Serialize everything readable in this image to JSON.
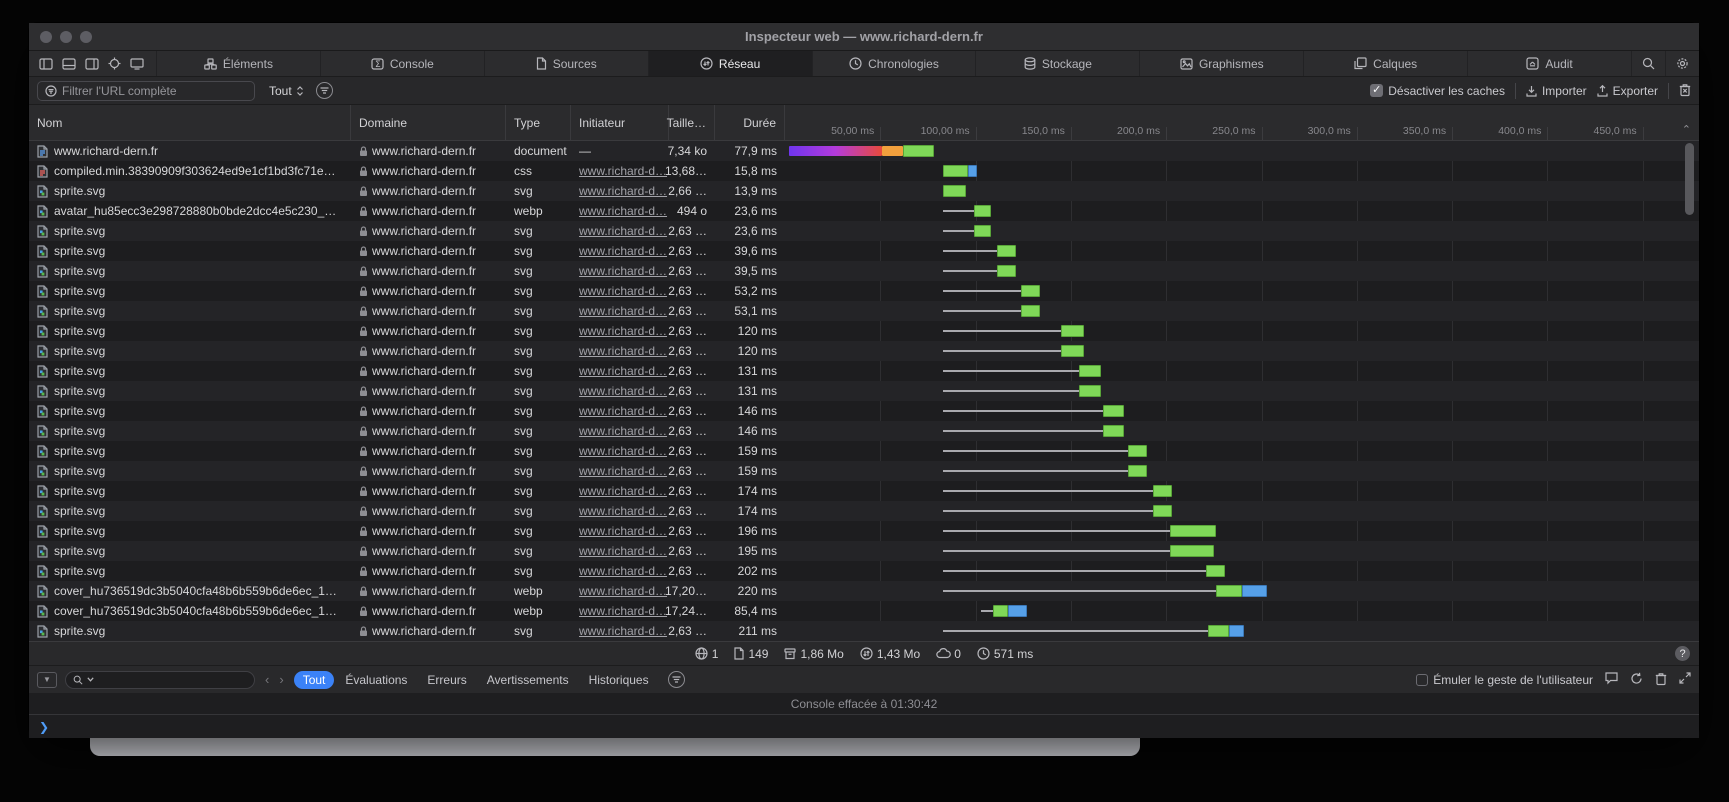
{
  "window": {
    "title": "Inspecteur web — www.richard-dern.fr"
  },
  "toolbar": {
    "tabs": [
      {
        "id": "elements",
        "label": "Éléments"
      },
      {
        "id": "console",
        "label": "Console"
      },
      {
        "id": "sources",
        "label": "Sources"
      },
      {
        "id": "network",
        "label": "Réseau"
      },
      {
        "id": "timelines",
        "label": "Chronologies"
      },
      {
        "id": "storage",
        "label": "Stockage"
      },
      {
        "id": "graphics",
        "label": "Graphismes"
      },
      {
        "id": "layers",
        "label": "Calques"
      },
      {
        "id": "audit",
        "label": "Audit"
      }
    ],
    "active_tab": "network"
  },
  "filterbar": {
    "filter_placeholder": "Filtrer l'URL complète",
    "scope_value": "Tout",
    "disable_caches_label": "Désactiver les caches",
    "disable_caches_checked": true,
    "import_label": "Importer",
    "export_label": "Exporter"
  },
  "table": {
    "columns": {
      "name": "Nom",
      "domain": "Domaine",
      "type": "Type",
      "initiator": "Initiateur",
      "size": "Taille…",
      "duration": "Durée"
    },
    "ruler_ticks": [
      "50,00 ms",
      "100,00 ms",
      "150,0 ms",
      "200,0 ms",
      "250,0 ms",
      "300,0 ms",
      "350,0 ms",
      "400,0 ms",
      "450,0 ms"
    ],
    "rows": [
      {
        "name": "www.richard-dern.fr",
        "icon": "document",
        "domain": "www.richard-dern.fr",
        "type": "document",
        "initiator": "—",
        "size": "7,34 ko",
        "duration": "77,9 ms",
        "wf": [
          [
            "purple",
            2,
            51
          ],
          [
            "orange",
            51,
            62
          ],
          [
            "green",
            62,
            78
          ]
        ]
      },
      {
        "name": "compiled.min.38390909f303624ed9e1cf1bd3fc71e…",
        "icon": "css",
        "domain": "www.richard-dern.fr",
        "type": "css",
        "initiator": "www.richard-d…",
        "size": "13,68…",
        "duration": "15,8 ms",
        "wf": [
          [
            "green",
            83,
            96
          ],
          [
            "blue",
            96,
            101
          ]
        ]
      },
      {
        "name": "sprite.svg",
        "icon": "image",
        "domain": "www.richard-dern.fr",
        "type": "svg",
        "initiator": "www.richard-d…",
        "size": "2,66 …",
        "duration": "13,9 ms",
        "wf": [
          [
            "green",
            83,
            95
          ]
        ]
      },
      {
        "name": "avatar_hu85ecc3e298728880b0bde2dcc4e5c230_…",
        "icon": "image",
        "domain": "www.richard-dern.fr",
        "type": "webp",
        "initiator": "www.richard-d…",
        "size": "494 o",
        "duration": "23,6 ms",
        "wf": [
          [
            "queue",
            83,
            99
          ],
          [
            "green",
            99,
            108
          ]
        ]
      },
      {
        "name": "sprite.svg",
        "icon": "image",
        "domain": "www.richard-dern.fr",
        "type": "svg",
        "initiator": "www.richard-d…",
        "size": "2,63 …",
        "duration": "23,6 ms",
        "wf": [
          [
            "queue",
            83,
            99
          ],
          [
            "green",
            99,
            108
          ]
        ]
      },
      {
        "name": "sprite.svg",
        "icon": "image",
        "domain": "www.richard-dern.fr",
        "type": "svg",
        "initiator": "www.richard-d…",
        "size": "2,63 …",
        "duration": "39,6 ms",
        "wf": [
          [
            "queue",
            83,
            111
          ],
          [
            "green",
            111,
            121
          ]
        ]
      },
      {
        "name": "sprite.svg",
        "icon": "image",
        "domain": "www.richard-dern.fr",
        "type": "svg",
        "initiator": "www.richard-d…",
        "size": "2,63 …",
        "duration": "39,5 ms",
        "wf": [
          [
            "queue",
            83,
            111
          ],
          [
            "green",
            111,
            121
          ]
        ]
      },
      {
        "name": "sprite.svg",
        "icon": "image",
        "domain": "www.richard-dern.fr",
        "type": "svg",
        "initiator": "www.richard-d…",
        "size": "2,63 …",
        "duration": "53,2 ms",
        "wf": [
          [
            "queue",
            83,
            124
          ],
          [
            "green",
            124,
            134
          ]
        ]
      },
      {
        "name": "sprite.svg",
        "icon": "image",
        "domain": "www.richard-dern.fr",
        "type": "svg",
        "initiator": "www.richard-d…",
        "size": "2,63 …",
        "duration": "53,1 ms",
        "wf": [
          [
            "queue",
            83,
            124
          ],
          [
            "green",
            124,
            134
          ]
        ]
      },
      {
        "name": "sprite.svg",
        "icon": "image",
        "domain": "www.richard-dern.fr",
        "type": "svg",
        "initiator": "www.richard-d…",
        "size": "2,63 …",
        "duration": "120 ms",
        "wf": [
          [
            "queue",
            83,
            145
          ],
          [
            "green",
            145,
            157
          ]
        ]
      },
      {
        "name": "sprite.svg",
        "icon": "image",
        "domain": "www.richard-dern.fr",
        "type": "svg",
        "initiator": "www.richard-d…",
        "size": "2,63 …",
        "duration": "120 ms",
        "wf": [
          [
            "queue",
            83,
            145
          ],
          [
            "green",
            145,
            157
          ]
        ]
      },
      {
        "name": "sprite.svg",
        "icon": "image",
        "domain": "www.richard-dern.fr",
        "type": "svg",
        "initiator": "www.richard-d…",
        "size": "2,63 …",
        "duration": "131 ms",
        "wf": [
          [
            "queue",
            83,
            154
          ],
          [
            "green",
            154,
            166
          ]
        ]
      },
      {
        "name": "sprite.svg",
        "icon": "image",
        "domain": "www.richard-dern.fr",
        "type": "svg",
        "initiator": "www.richard-d…",
        "size": "2,63 …",
        "duration": "131 ms",
        "wf": [
          [
            "queue",
            83,
            154
          ],
          [
            "green",
            154,
            166
          ]
        ]
      },
      {
        "name": "sprite.svg",
        "icon": "image",
        "domain": "www.richard-dern.fr",
        "type": "svg",
        "initiator": "www.richard-d…",
        "size": "2,63 …",
        "duration": "146 ms",
        "wf": [
          [
            "queue",
            83,
            167
          ],
          [
            "green",
            167,
            178
          ]
        ]
      },
      {
        "name": "sprite.svg",
        "icon": "image",
        "domain": "www.richard-dern.fr",
        "type": "svg",
        "initiator": "www.richard-d…",
        "size": "2,63 …",
        "duration": "146 ms",
        "wf": [
          [
            "queue",
            83,
            167
          ],
          [
            "green",
            167,
            178
          ]
        ]
      },
      {
        "name": "sprite.svg",
        "icon": "image",
        "domain": "www.richard-dern.fr",
        "type": "svg",
        "initiator": "www.richard-d…",
        "size": "2,63 …",
        "duration": "159 ms",
        "wf": [
          [
            "queue",
            83,
            180
          ],
          [
            "green",
            180,
            190
          ]
        ]
      },
      {
        "name": "sprite.svg",
        "icon": "image",
        "domain": "www.richard-dern.fr",
        "type": "svg",
        "initiator": "www.richard-d…",
        "size": "2,63 …",
        "duration": "159 ms",
        "wf": [
          [
            "queue",
            83,
            180
          ],
          [
            "green",
            180,
            190
          ]
        ]
      },
      {
        "name": "sprite.svg",
        "icon": "image",
        "domain": "www.richard-dern.fr",
        "type": "svg",
        "initiator": "www.richard-d…",
        "size": "2,63 …",
        "duration": "174 ms",
        "wf": [
          [
            "queue",
            83,
            193
          ],
          [
            "green",
            193,
            203
          ]
        ]
      },
      {
        "name": "sprite.svg",
        "icon": "image",
        "domain": "www.richard-dern.fr",
        "type": "svg",
        "initiator": "www.richard-d…",
        "size": "2,63 …",
        "duration": "174 ms",
        "wf": [
          [
            "queue",
            83,
            193
          ],
          [
            "green",
            193,
            203
          ]
        ]
      },
      {
        "name": "sprite.svg",
        "icon": "image",
        "domain": "www.richard-dern.fr",
        "type": "svg",
        "initiator": "www.richard-d…",
        "size": "2,63 …",
        "duration": "196 ms",
        "wf": [
          [
            "queue",
            83,
            202
          ],
          [
            "green",
            202,
            226
          ]
        ]
      },
      {
        "name": "sprite.svg",
        "icon": "image",
        "domain": "www.richard-dern.fr",
        "type": "svg",
        "initiator": "www.richard-d…",
        "size": "2,63 …",
        "duration": "195 ms",
        "wf": [
          [
            "queue",
            83,
            202
          ],
          [
            "green",
            202,
            225
          ]
        ]
      },
      {
        "name": "sprite.svg",
        "icon": "image",
        "domain": "www.richard-dern.fr",
        "type": "svg",
        "initiator": "www.richard-d…",
        "size": "2,63 …",
        "duration": "202 ms",
        "wf": [
          [
            "queue",
            83,
            221
          ],
          [
            "green",
            221,
            231
          ]
        ]
      },
      {
        "name": "cover_hu736519dc3b5040cfa48b6b559b6de6ec_1…",
        "icon": "image",
        "domain": "www.richard-dern.fr",
        "type": "webp",
        "initiator": "www.richard-d…",
        "size": "17,20…",
        "duration": "220 ms",
        "wf": [
          [
            "queue",
            83,
            226
          ],
          [
            "green",
            226,
            240
          ],
          [
            "blue",
            240,
            253
          ]
        ]
      },
      {
        "name": "cover_hu736519dc3b5040cfa48b6b559b6de6ec_1…",
        "icon": "image",
        "domain": "www.richard-dern.fr",
        "type": "webp",
        "initiator": "www.richard-d…",
        "size": "17,24…",
        "duration": "85,4 ms",
        "wf": [
          [
            "queue",
            103,
            109
          ],
          [
            "green",
            109,
            117
          ],
          [
            "blue",
            117,
            127
          ]
        ]
      },
      {
        "name": "sprite.svg",
        "icon": "image",
        "domain": "www.richard-dern.fr",
        "type": "svg",
        "initiator": "www.richard-d…",
        "size": "2,63 …",
        "duration": "211 ms",
        "wf": [
          [
            "queue",
            83,
            222
          ],
          [
            "green",
            222,
            233
          ],
          [
            "blue",
            233,
            241
          ]
        ]
      }
    ]
  },
  "statusbar": {
    "domains": "1",
    "resources": "149",
    "total_size": "1,86 Mo",
    "transferred": "1,43 Mo",
    "cached": "0",
    "load_time": "571 ms"
  },
  "console_bar": {
    "tabs": [
      "Tout",
      "Évaluations",
      "Erreurs",
      "Avertissements",
      "Historiques"
    ],
    "active_tab": "Tout",
    "emulate_label": "Émuler le geste de l'utilisateur",
    "cleared_message": "Console effacée à 01:30:42"
  },
  "colors": {
    "accent_blue": "#3b82f7",
    "bar_green": "#7fd858",
    "bar_blue": "#56a0e8",
    "bar_purple": "#6f35ee",
    "bar_orange": "#f2a03d"
  }
}
